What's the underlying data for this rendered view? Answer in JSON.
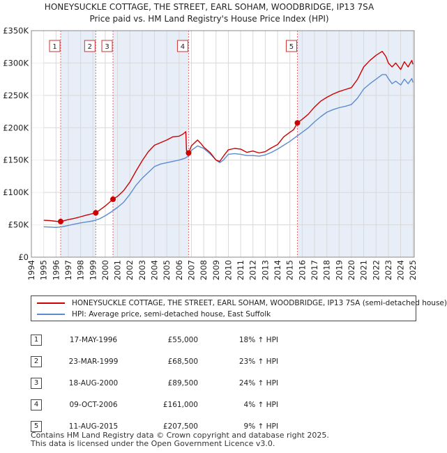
{
  "title_line1": "HONEYSUCKLE COTTAGE, THE STREET, EARL SOHAM, WOODBRIDGE, IP13 7SA",
  "title_line2": "Price paid vs. HM Land Registry's House Price Index (HPI)",
  "colors": {
    "property": "#cc0000",
    "hpi": "#5b8bd0",
    "shade": "#e8eef8",
    "marker_dash": "#ee6666"
  },
  "chart_data": {
    "type": "line",
    "ylim": [
      0,
      350000
    ],
    "xlim": [
      1994,
      2025.1
    ],
    "y_ticks": [
      0,
      50000,
      100000,
      150000,
      200000,
      250000,
      300000,
      350000
    ],
    "y_tick_labels": [
      "£0",
      "£50K",
      "£100K",
      "£150K",
      "£200K",
      "£250K",
      "£300K",
      "£350K"
    ],
    "x_tick_labels": [
      "1994",
      "1995",
      "1996",
      "1997",
      "1998",
      "1999",
      "2000",
      "2001",
      "2002",
      "2003",
      "2004",
      "2005",
      "2006",
      "2007",
      "2008",
      "2009",
      "2010",
      "2011",
      "2012",
      "2013",
      "2014",
      "2015",
      "2016",
      "2017",
      "2018",
      "2019",
      "2020",
      "2021",
      "2022",
      "2023",
      "2024",
      "2025"
    ],
    "data_start": 1995.0,
    "series": [
      {
        "name": "HONEYSUCKLE COTTAGE, THE STREET, EARL SOHAM, WOODBRIDGE, IP13 7SA (semi-detached house)",
        "color": "#cc0000",
        "x": [
          1995.0,
          1995.5,
          1996.0,
          1996.38,
          1997.0,
          1997.5,
          1998.0,
          1998.5,
          1999.23,
          1999.5,
          2000.0,
          2000.63,
          2001.0,
          2001.5,
          2002.0,
          2002.5,
          2003.0,
          2003.5,
          2004.0,
          2004.5,
          2005.0,
          2005.5,
          2006.0,
          2006.3,
          2006.55,
          2006.6,
          2006.77,
          2007.0,
          2007.5,
          2007.8,
          2008.0,
          2008.5,
          2009.0,
          2009.3,
          2009.6,
          2010.0,
          2010.5,
          2011.0,
          2011.5,
          2012.0,
          2012.5,
          2013.0,
          2013.5,
          2014.0,
          2014.5,
          2015.0,
          2015.3,
          2015.61,
          2016.0,
          2016.5,
          2017.0,
          2017.5,
          2018.0,
          2018.5,
          2019.0,
          2019.5,
          2020.0,
          2020.5,
          2021.0,
          2021.5,
          2022.0,
          2022.5,
          2022.8,
          2023.0,
          2023.3,
          2023.6,
          2024.0,
          2024.3,
          2024.6,
          2024.9,
          2025.0
        ],
        "values": [
          57000,
          56500,
          55500,
          55000,
          58000,
          60000,
          62500,
          65000,
          68500,
          72000,
          79000,
          89500,
          94000,
          103000,
          116000,
          133000,
          149000,
          163000,
          173000,
          177000,
          181000,
          186000,
          187000,
          190000,
          194000,
          165000,
          161000,
          172000,
          181000,
          175000,
          170000,
          162000,
          150000,
          148000,
          156000,
          166000,
          168000,
          167000,
          162000,
          164000,
          161000,
          163000,
          169000,
          174000,
          186000,
          193000,
          197000,
          207500,
          213000,
          221000,
          232000,
          241000,
          247000,
          252000,
          256000,
          259000,
          262000,
          275000,
          294000,
          304000,
          312000,
          318000,
          310000,
          300000,
          294000,
          300000,
          290000,
          302000,
          294000,
          304000,
          298000
        ]
      },
      {
        "name": "HPI: Average price, semi-detached house, East Suffolk",
        "color": "#5b8bd0",
        "x": [
          1995.0,
          1995.5,
          1996.0,
          1996.5,
          1997.0,
          1997.5,
          1998.0,
          1998.5,
          1999.0,
          1999.5,
          2000.0,
          2000.5,
          2001.0,
          2001.5,
          2002.0,
          2002.5,
          2003.0,
          2003.5,
          2004.0,
          2004.5,
          2005.0,
          2005.5,
          2006.0,
          2006.5,
          2006.8,
          2007.0,
          2007.5,
          2008.0,
          2008.5,
          2009.0,
          2009.3,
          2009.6,
          2010.0,
          2010.5,
          2011.0,
          2011.5,
          2012.0,
          2012.5,
          2013.0,
          2013.5,
          2014.0,
          2014.5,
          2015.0,
          2015.5,
          2016.0,
          2016.5,
          2017.0,
          2017.5,
          2018.0,
          2018.5,
          2019.0,
          2019.5,
          2020.0,
          2020.5,
          2021.0,
          2021.5,
          2022.0,
          2022.5,
          2022.8,
          2023.0,
          2023.3,
          2023.6,
          2024.0,
          2024.3,
          2024.6,
          2024.9,
          2025.0
        ],
        "values": [
          47000,
          46500,
          46000,
          47000,
          49000,
          51000,
          53000,
          54500,
          56000,
          59000,
          64000,
          70000,
          77000,
          85000,
          97000,
          111000,
          122000,
          131000,
          140000,
          144000,
          146000,
          148000,
          150000,
          153000,
          157000,
          165000,
          172000,
          168000,
          160000,
          150000,
          146000,
          150000,
          159000,
          160000,
          159000,
          157000,
          157000,
          156000,
          158000,
          162000,
          167000,
          173000,
          179000,
          186000,
          193000,
          200000,
          209000,
          217000,
          224000,
          228000,
          231000,
          233000,
          236000,
          246000,
          260000,
          268000,
          275000,
          282000,
          282000,
          276000,
          268000,
          272000,
          266000,
          275000,
          268000,
          276000,
          270000
        ]
      }
    ],
    "sales": [
      {
        "n": "1",
        "x": 1996.38,
        "value": 55000
      },
      {
        "n": "2",
        "x": 1999.23,
        "value": 68500
      },
      {
        "n": "3",
        "x": 2000.63,
        "value": 89500
      },
      {
        "n": "4",
        "x": 2006.77,
        "value": 161000
      },
      {
        "n": "5",
        "x": 2015.61,
        "value": 207500
      }
    ]
  },
  "legend": {
    "property_label": "HONEYSUCKLE COTTAGE, THE STREET, EARL SOHAM, WOODBRIDGE, IP13 7SA (semi-detached house)",
    "hpi_label": "HPI: Average price, semi-detached house, East Suffolk"
  },
  "sales_table": [
    {
      "n": "1",
      "date": "17-MAY-1996",
      "price": "£55,000",
      "hpi": "18% ↑ HPI"
    },
    {
      "n": "2",
      "date": "23-MAR-1999",
      "price": "£68,500",
      "hpi": "23% ↑ HPI"
    },
    {
      "n": "3",
      "date": "18-AUG-2000",
      "price": "£89,500",
      "hpi": "24% ↑ HPI"
    },
    {
      "n": "4",
      "date": "09-OCT-2006",
      "price": "£161,000",
      "hpi": "4% ↑ HPI"
    },
    {
      "n": "5",
      "date": "11-AUG-2015",
      "price": "£207,500",
      "hpi": "9% ↑ HPI"
    }
  ],
  "footer": {
    "line1": "Contains HM Land Registry data © Crown copyright and database right 2025.",
    "line2": "This data is licensed under the Open Government Licence v3.0."
  }
}
